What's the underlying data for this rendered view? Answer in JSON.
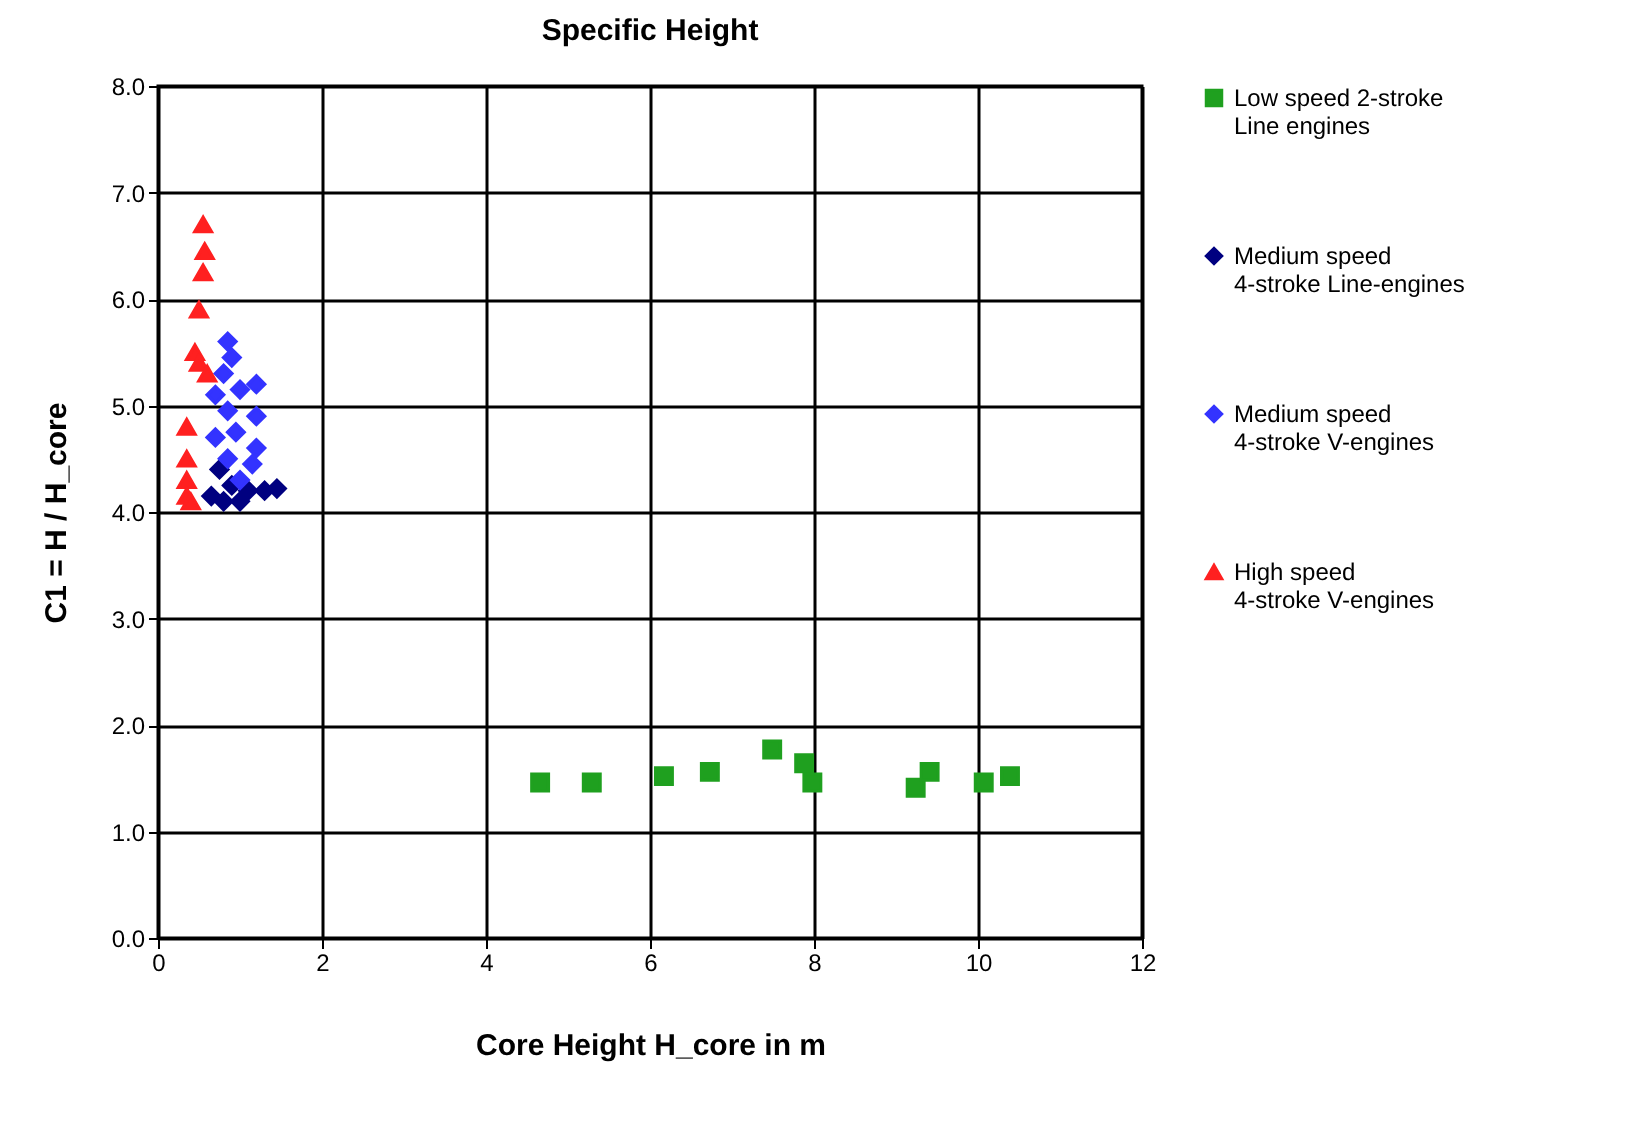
{
  "chart_data": {
    "type": "scatter",
    "title": "Specific Height",
    "xlabel": "Core Height H_core in m",
    "ylabel": "C1 = H / H_core",
    "xlim": [
      0,
      12
    ],
    "xticks": [
      0,
      2,
      4,
      6,
      8,
      10,
      12
    ],
    "ylim": [
      0,
      8
    ],
    "yticks": [
      {
        "value": 0,
        "label": "0.0"
      },
      {
        "value": 1,
        "label": "1.0"
      },
      {
        "value": 2,
        "label": "2.0"
      },
      {
        "value": 3,
        "label": "3.0"
      },
      {
        "value": 4,
        "label": "4.0"
      },
      {
        "value": 5,
        "label": "5.0"
      },
      {
        "value": 6,
        "label": "6.0"
      },
      {
        "value": 7,
        "label": "7.0"
      },
      {
        "value": 8,
        "label": "8.0"
      }
    ],
    "grid": true,
    "legend": "right",
    "series": [
      {
        "name": "Low speed 2-stroke\nLine engines",
        "color": "#1fa01f",
        "marker": "square",
        "x": [
          4.66,
          5.29,
          6.17,
          6.73,
          7.49,
          7.88,
          7.98,
          9.24,
          9.41,
          10.07,
          10.39
        ],
        "values": [
          1.46,
          1.46,
          1.52,
          1.56,
          1.77,
          1.64,
          1.46,
          1.41,
          1.56,
          1.46,
          1.52
        ]
      },
      {
        "name": "Medium speed\n4-stroke Line-engines",
        "color": "#000080",
        "marker": "diamond",
        "x": [
          0.65,
          0.75,
          0.9,
          1.0,
          1.1,
          1.3,
          1.45,
          0.8
        ],
        "values": [
          4.15,
          4.4,
          4.25,
          4.1,
          4.2,
          4.2,
          4.22,
          4.1
        ]
      },
      {
        "name": "Medium speed\n4-stroke V-engines",
        "color": "#3333ff",
        "marker": "diamond",
        "x": [
          0.85,
          0.9,
          0.8,
          0.7,
          1.2,
          1.0,
          0.85,
          1.2,
          0.7,
          0.95,
          1.2,
          0.85,
          1.15,
          1.0
        ],
        "values": [
          5.6,
          5.45,
          5.3,
          5.1,
          5.2,
          5.15,
          4.95,
          4.9,
          4.7,
          4.75,
          4.6,
          4.5,
          4.45,
          4.3
        ]
      },
      {
        "name": "High speed\n4-stroke V-engines",
        "color": "#ff2020",
        "marker": "triangle",
        "x": [
          0.55,
          0.57,
          0.55,
          0.5,
          0.45,
          0.5,
          0.6,
          0.35,
          0.35,
          0.35,
          0.35,
          0.4
        ],
        "values": [
          6.7,
          6.45,
          6.25,
          5.9,
          5.5,
          5.4,
          5.3,
          4.8,
          4.5,
          4.3,
          4.15,
          4.1
        ]
      }
    ]
  }
}
